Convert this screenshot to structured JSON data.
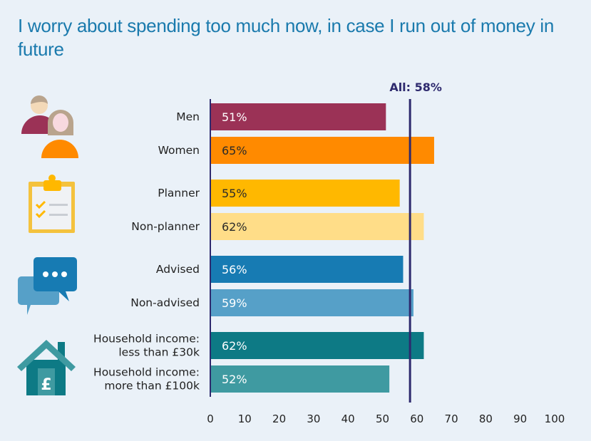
{
  "chart_data": {
    "type": "bar",
    "orientation": "horizontal",
    "title": "I worry about spending too much now, in case I run out of money in future",
    "xlabel": "",
    "ylabel": "",
    "xlim": [
      0,
      100
    ],
    "x_ticks": [
      0,
      10,
      20,
      30,
      40,
      50,
      60,
      70,
      80,
      90,
      100
    ],
    "grid": false,
    "reference_line": {
      "label": "All: 58%",
      "value": 58,
      "color": "#2e2a6e"
    },
    "groups": [
      {
        "name": "Gender",
        "icon": "people-icon",
        "bars": [
          {
            "label": [
              "Men"
            ],
            "value": 51,
            "value_label": "51%",
            "color": "#9b3256",
            "text_color": "#ffffff"
          },
          {
            "label": [
              "Women"
            ],
            "value": 65,
            "value_label": "65%",
            "color": "#ff8a00",
            "text_color": "#2a2a2a"
          }
        ]
      },
      {
        "name": "Planning",
        "icon": "clipboard-checklist-icon",
        "bars": [
          {
            "label": [
              "Planner"
            ],
            "value": 55,
            "value_label": "55%",
            "color": "#ffb800",
            "text_color": "#2a2a2a"
          },
          {
            "label": [
              "Non-planner"
            ],
            "value": 62,
            "value_label": "62%",
            "color": "#ffdd88",
            "text_color": "#2a2a2a"
          }
        ]
      },
      {
        "name": "Advice",
        "icon": "speech-bubbles-icon",
        "bars": [
          {
            "label": [
              "Advised"
            ],
            "value": 56,
            "value_label": "56%",
            "color": "#177bb3",
            "text_color": "#ffffff"
          },
          {
            "label": [
              "Non-advised"
            ],
            "value": 59,
            "value_label": "59%",
            "color": "#56a0c8",
            "text_color": "#ffffff"
          }
        ]
      },
      {
        "name": "Income",
        "icon": "house-pound-icon",
        "bars": [
          {
            "label": [
              "Household income:",
              "less than £30k"
            ],
            "value": 62,
            "value_label": "62%",
            "color": "#0d7a85",
            "text_color": "#ffffff"
          },
          {
            "label": [
              "Household income:",
              "more than £100k"
            ],
            "value": 52,
            "value_label": "52%",
            "color": "#3f9aa1",
            "text_color": "#ffffff"
          }
        ]
      }
    ]
  }
}
